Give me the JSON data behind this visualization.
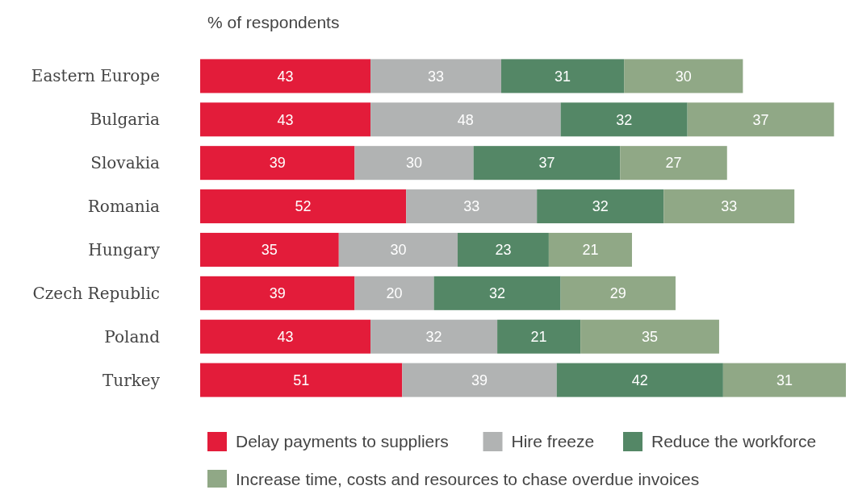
{
  "chart_data": {
    "type": "bar",
    "orientation": "horizontal",
    "stacked": true,
    "title": "% of respondents",
    "categories": [
      "Eastern Europe",
      "Bulgaria",
      "Slovakia",
      "Romania",
      "Hungary",
      "Czech Republic",
      "Poland",
      "Turkey"
    ],
    "series": [
      {
        "name": "Delay payments to suppliers",
        "color": "#e31c3a",
        "values": [
          43,
          43,
          39,
          52,
          35,
          39,
          43,
          51
        ]
      },
      {
        "name": "Hire freeze",
        "color": "#b1b3b3",
        "values": [
          33,
          48,
          30,
          33,
          30,
          20,
          32,
          39
        ]
      },
      {
        "name": "Reduce the workforce",
        "color": "#548766",
        "values": [
          31,
          32,
          37,
          32,
          23,
          32,
          21,
          42
        ]
      },
      {
        "name": "Increase time, costs and resources to chase overdue invoices",
        "color": "#90a886",
        "values": [
          30,
          37,
          27,
          33,
          21,
          29,
          35,
          31
        ]
      }
    ],
    "data_labels": true,
    "legend": "bottom",
    "grid": false
  }
}
